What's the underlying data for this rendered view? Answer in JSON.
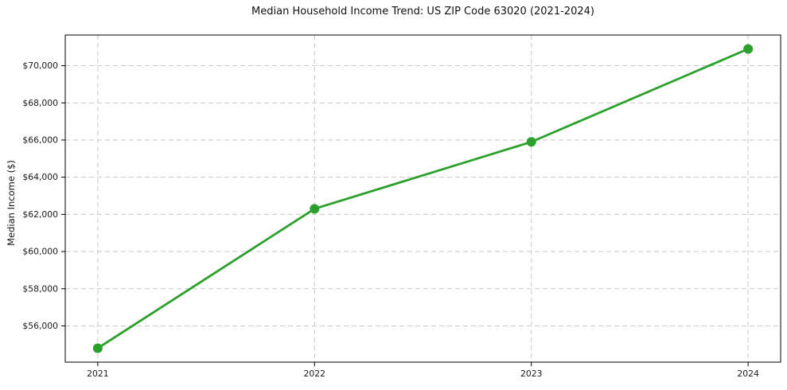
{
  "chart_data": {
    "type": "line",
    "title": "Median Household Income Trend: US ZIP Code 63020 (2021-2024)",
    "ylabel": "Median Income ($)",
    "xlabel": "",
    "categories": [
      "2021",
      "2022",
      "2023",
      "2024"
    ],
    "series": [
      {
        "values": [
          54800,
          62300,
          65900,
          70900
        ],
        "color": "#2ca02c"
      }
    ],
    "ylim": [
      54050,
      71650
    ],
    "yticks": [
      56000,
      58000,
      60000,
      62000,
      64000,
      66000,
      68000,
      70000
    ],
    "ytick_labels": [
      "$56,000",
      "$58,000",
      "$60,000",
      "$62,000",
      "$64,000",
      "$66,000",
      "$68,000",
      "$70,000"
    ],
    "grid": true,
    "grid_color": "#c9c9c9",
    "grid_style": "dashed",
    "legend": false,
    "marker": "circle",
    "background_color": "#ffffff",
    "frame_color": "#000000",
    "text_color": "#1a1a1a"
  }
}
